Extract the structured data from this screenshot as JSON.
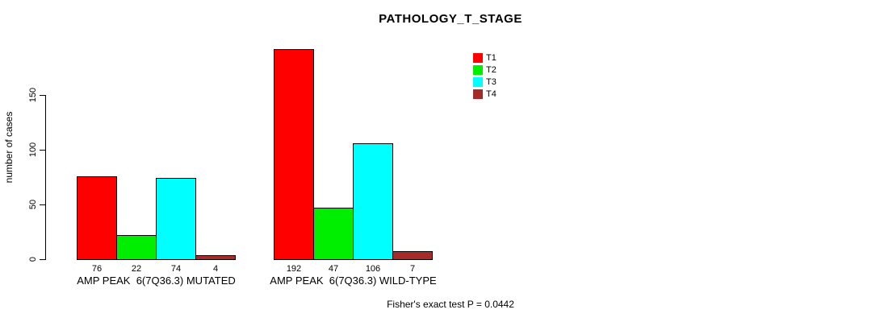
{
  "title": "PATHOLOGY_T_STAGE",
  "footnote": "Fisher's exact test P = 0.0442",
  "chart_data": {
    "type": "bar",
    "title": "PATHOLOGY_T_STAGE",
    "xlabel": "",
    "ylabel": "number of cases",
    "ylim": [
      0,
      150
    ],
    "yticks": [
      0,
      50,
      100,
      150
    ],
    "grid": false,
    "legend_position": "top-right",
    "categories": [
      "AMP PEAK  6(7Q36.3) MUTATED",
      "AMP PEAK  6(7Q36.3) WILD-TYPE"
    ],
    "series": [
      {
        "name": "T1",
        "color": "#ff0000",
        "values": [
          76,
          192
        ]
      },
      {
        "name": "T2",
        "color": "#00ee00",
        "values": [
          22,
          47
        ]
      },
      {
        "name": "T3",
        "color": "#00ffff",
        "values": [
          74,
          106
        ]
      },
      {
        "name": "T4",
        "color": "#a52a2a",
        "values": [
          4,
          7
        ]
      }
    ],
    "bar_value_labels": {
      "group1": [
        "76",
        "22",
        "74",
        "4"
      ],
      "group2": [
        "192",
        "47",
        "106",
        "7"
      ]
    },
    "annotation": "Fisher's exact test P = 0.0442"
  }
}
